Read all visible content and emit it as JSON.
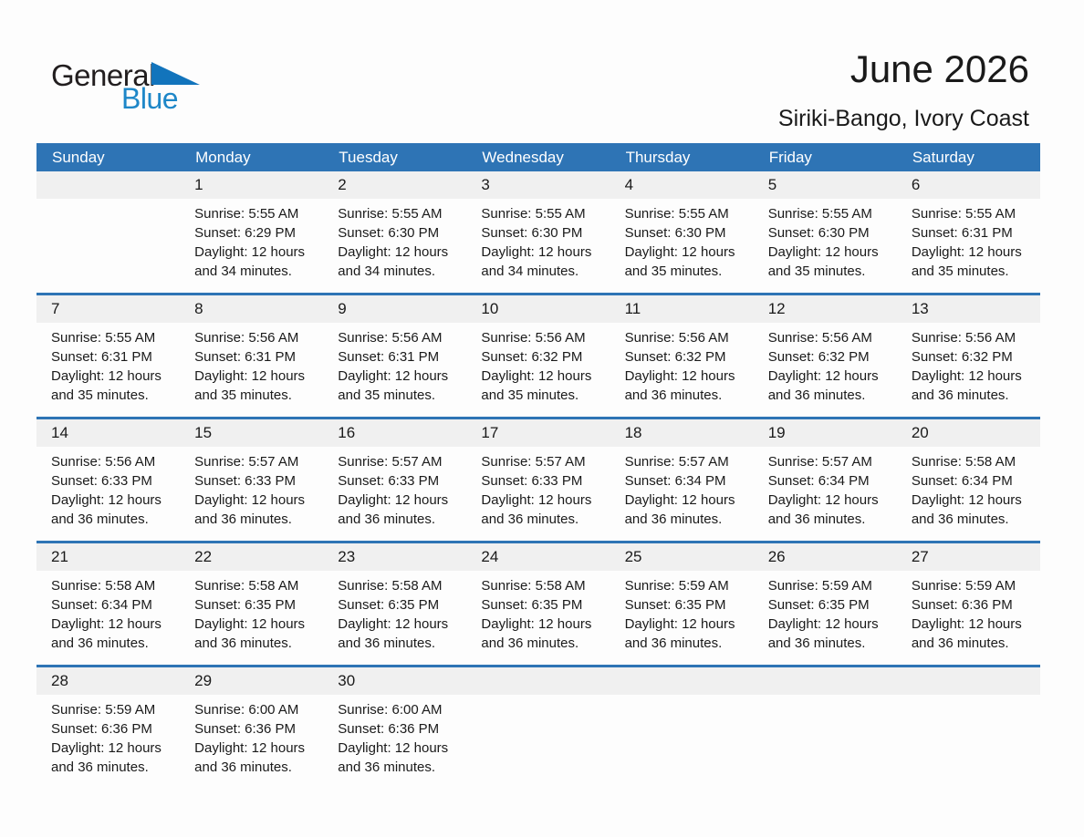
{
  "logo": {
    "general": "General",
    "blue": "Blue"
  },
  "header": {
    "month_year": "June 2026",
    "location": "Siriki-Bango, Ivory Coast"
  },
  "colors": {
    "header_blue": "#2E74B5",
    "band_gray": "#F0F0F0",
    "logo_blue": "#1E87C8",
    "logo_triangle_blue": "#1274BC",
    "text_dark": "#1A1A1A"
  },
  "calendar": {
    "weekday_headers": [
      "Sunday",
      "Monday",
      "Tuesday",
      "Wednesday",
      "Thursday",
      "Friday",
      "Saturday"
    ],
    "weeks": [
      {
        "cells": [
          {
            "day": "",
            "lines": []
          },
          {
            "day": "1",
            "lines": [
              "Sunrise: 5:55 AM",
              "Sunset: 6:29 PM",
              "Daylight: 12 hours",
              "and 34 minutes."
            ]
          },
          {
            "day": "2",
            "lines": [
              "Sunrise: 5:55 AM",
              "Sunset: 6:30 PM",
              "Daylight: 12 hours",
              "and 34 minutes."
            ]
          },
          {
            "day": "3",
            "lines": [
              "Sunrise: 5:55 AM",
              "Sunset: 6:30 PM",
              "Daylight: 12 hours",
              "and 34 minutes."
            ]
          },
          {
            "day": "4",
            "lines": [
              "Sunrise: 5:55 AM",
              "Sunset: 6:30 PM",
              "Daylight: 12 hours",
              "and 35 minutes."
            ]
          },
          {
            "day": "5",
            "lines": [
              "Sunrise: 5:55 AM",
              "Sunset: 6:30 PM",
              "Daylight: 12 hours",
              "and 35 minutes."
            ]
          },
          {
            "day": "6",
            "lines": [
              "Sunrise: 5:55 AM",
              "Sunset: 6:31 PM",
              "Daylight: 12 hours",
              "and 35 minutes."
            ]
          }
        ]
      },
      {
        "cells": [
          {
            "day": "7",
            "lines": [
              "Sunrise: 5:55 AM",
              "Sunset: 6:31 PM",
              "Daylight: 12 hours",
              "and 35 minutes."
            ]
          },
          {
            "day": "8",
            "lines": [
              "Sunrise: 5:56 AM",
              "Sunset: 6:31 PM",
              "Daylight: 12 hours",
              "and 35 minutes."
            ]
          },
          {
            "day": "9",
            "lines": [
              "Sunrise: 5:56 AM",
              "Sunset: 6:31 PM",
              "Daylight: 12 hours",
              "and 35 minutes."
            ]
          },
          {
            "day": "10",
            "lines": [
              "Sunrise: 5:56 AM",
              "Sunset: 6:32 PM",
              "Daylight: 12 hours",
              "and 35 minutes."
            ]
          },
          {
            "day": "11",
            "lines": [
              "Sunrise: 5:56 AM",
              "Sunset: 6:32 PM",
              "Daylight: 12 hours",
              "and 36 minutes."
            ]
          },
          {
            "day": "12",
            "lines": [
              "Sunrise: 5:56 AM",
              "Sunset: 6:32 PM",
              "Daylight: 12 hours",
              "and 36 minutes."
            ]
          },
          {
            "day": "13",
            "lines": [
              "Sunrise: 5:56 AM",
              "Sunset: 6:32 PM",
              "Daylight: 12 hours",
              "and 36 minutes."
            ]
          }
        ]
      },
      {
        "cells": [
          {
            "day": "14",
            "lines": [
              "Sunrise: 5:56 AM",
              "Sunset: 6:33 PM",
              "Daylight: 12 hours",
              "and 36 minutes."
            ]
          },
          {
            "day": "15",
            "lines": [
              "Sunrise: 5:57 AM",
              "Sunset: 6:33 PM",
              "Daylight: 12 hours",
              "and 36 minutes."
            ]
          },
          {
            "day": "16",
            "lines": [
              "Sunrise: 5:57 AM",
              "Sunset: 6:33 PM",
              "Daylight: 12 hours",
              "and 36 minutes."
            ]
          },
          {
            "day": "17",
            "lines": [
              "Sunrise: 5:57 AM",
              "Sunset: 6:33 PM",
              "Daylight: 12 hours",
              "and 36 minutes."
            ]
          },
          {
            "day": "18",
            "lines": [
              "Sunrise: 5:57 AM",
              "Sunset: 6:34 PM",
              "Daylight: 12 hours",
              "and 36 minutes."
            ]
          },
          {
            "day": "19",
            "lines": [
              "Sunrise: 5:57 AM",
              "Sunset: 6:34 PM",
              "Daylight: 12 hours",
              "and 36 minutes."
            ]
          },
          {
            "day": "20",
            "lines": [
              "Sunrise: 5:58 AM",
              "Sunset: 6:34 PM",
              "Daylight: 12 hours",
              "and 36 minutes."
            ]
          }
        ]
      },
      {
        "cells": [
          {
            "day": "21",
            "lines": [
              "Sunrise: 5:58 AM",
              "Sunset: 6:34 PM",
              "Daylight: 12 hours",
              "and 36 minutes."
            ]
          },
          {
            "day": "22",
            "lines": [
              "Sunrise: 5:58 AM",
              "Sunset: 6:35 PM",
              "Daylight: 12 hours",
              "and 36 minutes."
            ]
          },
          {
            "day": "23",
            "lines": [
              "Sunrise: 5:58 AM",
              "Sunset: 6:35 PM",
              "Daylight: 12 hours",
              "and 36 minutes."
            ]
          },
          {
            "day": "24",
            "lines": [
              "Sunrise: 5:58 AM",
              "Sunset: 6:35 PM",
              "Daylight: 12 hours",
              "and 36 minutes."
            ]
          },
          {
            "day": "25",
            "lines": [
              "Sunrise: 5:59 AM",
              "Sunset: 6:35 PM",
              "Daylight: 12 hours",
              "and 36 minutes."
            ]
          },
          {
            "day": "26",
            "lines": [
              "Sunrise: 5:59 AM",
              "Sunset: 6:35 PM",
              "Daylight: 12 hours",
              "and 36 minutes."
            ]
          },
          {
            "day": "27",
            "lines": [
              "Sunrise: 5:59 AM",
              "Sunset: 6:36 PM",
              "Daylight: 12 hours",
              "and 36 minutes."
            ]
          }
        ]
      },
      {
        "cells": [
          {
            "day": "28",
            "lines": [
              "Sunrise: 5:59 AM",
              "Sunset: 6:36 PM",
              "Daylight: 12 hours",
              "and 36 minutes."
            ]
          },
          {
            "day": "29",
            "lines": [
              "Sunrise: 6:00 AM",
              "Sunset: 6:36 PM",
              "Daylight: 12 hours",
              "and 36 minutes."
            ]
          },
          {
            "day": "30",
            "lines": [
              "Sunrise: 6:00 AM",
              "Sunset: 6:36 PM",
              "Daylight: 12 hours",
              "and 36 minutes."
            ]
          },
          {
            "day": "",
            "lines": []
          },
          {
            "day": "",
            "lines": []
          },
          {
            "day": "",
            "lines": []
          },
          {
            "day": "",
            "lines": []
          }
        ]
      }
    ]
  }
}
